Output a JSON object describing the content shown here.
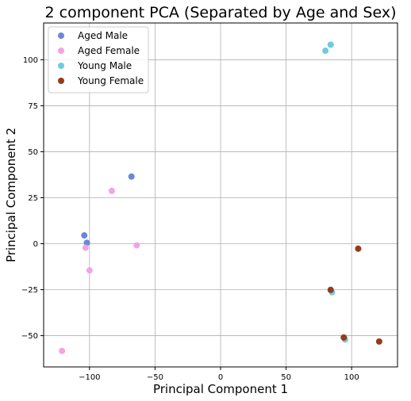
{
  "chart_data": {
    "type": "scatter",
    "title": "2 component PCA (Separated by Age and Sex)",
    "xlabel": "Principal Component 1",
    "ylabel": "Principal Component 2",
    "xlim": [
      -135,
      135
    ],
    "ylim": [
      -67,
      120
    ],
    "xticks": [
      -100,
      -50,
      0,
      50,
      100
    ],
    "yticks": [
      -50,
      -25,
      0,
      25,
      50,
      75,
      100
    ],
    "grid": true,
    "legend_position": "upper-left",
    "series": [
      {
        "name": "Aged Male",
        "color": "#6b87d8",
        "points": [
          [
            -68,
            36.5
          ],
          [
            -104,
            4.5
          ],
          [
            -102,
            0.5
          ]
        ]
      },
      {
        "name": "Aged Female",
        "color": "#f2a3e6",
        "points": [
          [
            -83,
            28.7
          ],
          [
            -64,
            -0.9
          ],
          [
            -103,
            -2.2
          ],
          [
            -100,
            -14.5
          ],
          [
            -121,
            -58.3
          ]
        ]
      },
      {
        "name": "Young Male",
        "color": "#6ecbe0",
        "points": [
          [
            84,
            108.2
          ],
          [
            80,
            104.9
          ],
          [
            85,
            -26.4
          ],
          [
            95,
            -52.1
          ]
        ]
      },
      {
        "name": "Young Female",
        "color": "#963a1b",
        "points": [
          [
            105,
            -2.7
          ],
          [
            84,
            -25.1
          ],
          [
            94,
            -51.0
          ],
          [
            121,
            -53.2
          ]
        ]
      }
    ]
  }
}
